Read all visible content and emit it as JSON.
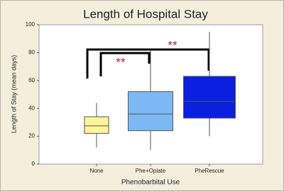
{
  "chart_data": {
    "type": "box",
    "title": "Length of Hospital Stay",
    "x_label": "Phenobarbital Use",
    "y_label": "Length of Stay (mean days)",
    "categories": [
      "None",
      "Phe+Opiate",
      "PheRescue"
    ],
    "boxes": [
      {
        "min": 12,
        "q1": 22,
        "median": 27.5,
        "q3": 34,
        "max": 44
      },
      {
        "min": 10,
        "q1": 24,
        "median": 36,
        "q3": 52,
        "max": 82
      },
      {
        "min": 20,
        "q1": 33,
        "median": 45,
        "q3": 63,
        "max": 95
      }
    ],
    "colors": [
      "#fdf59c",
      "#7cb9f4",
      "#0a1fe0"
    ],
    "annotations": [
      "**",
      "**"
    ],
    "ylim": [
      0,
      100
    ],
    "yticks": [
      0,
      20,
      40,
      60,
      80,
      100
    ],
    "grid": false
  }
}
